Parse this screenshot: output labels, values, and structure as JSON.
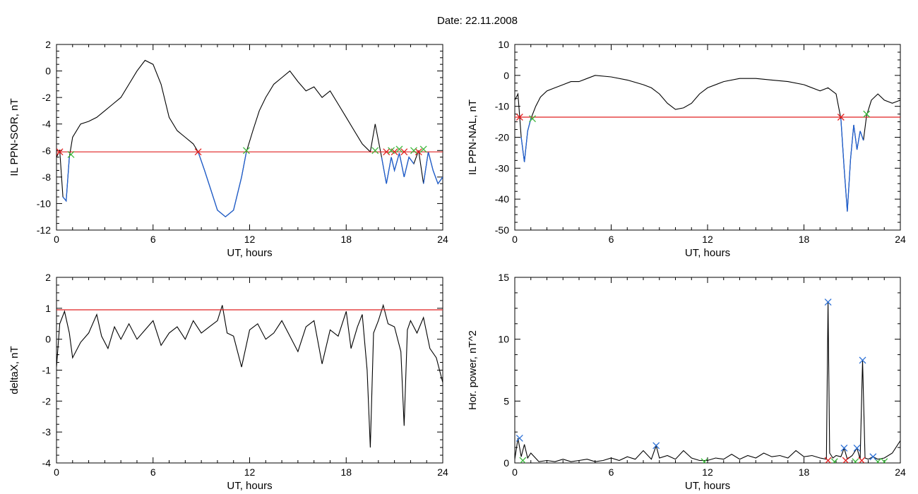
{
  "page": {
    "title": "Date:  22.11.2008"
  },
  "colors": {
    "trace": "#000000",
    "highlight": "#1f5fd0",
    "threshold": "#e02020",
    "marker_red": "#e02020",
    "marker_green": "#3cb83c",
    "marker_blue": "#2a6fd6"
  },
  "chart_data": [
    {
      "id": "sor",
      "type": "line",
      "xlabel": "UT, hours",
      "ylabel": "IL PPN-SOR, nT",
      "xlim": [
        0,
        24
      ],
      "ylim": [
        -12,
        2
      ],
      "xticks": [
        0,
        6,
        12,
        18,
        24
      ],
      "yticks": [
        2,
        0,
        -2,
        -4,
        -6,
        -8,
        -10,
        -12
      ],
      "threshold": -6.1,
      "series": [
        {
          "x": [
            0,
            0.2,
            0.4,
            0.6,
            0.8,
            1.0,
            1.5,
            2.0,
            2.5,
            3.0,
            3.5,
            4.0,
            4.5,
            5.0,
            5.5,
            6.0,
            6.5,
            7.0,
            7.5,
            8.0,
            8.5,
            8.8,
            9.2,
            9.6,
            10.0,
            10.5,
            11.0,
            11.5,
            11.8,
            12.2,
            12.6,
            13.0,
            13.5,
            14.0,
            14.5,
            15.0,
            15.5,
            16.0,
            16.5,
            17.0,
            17.5,
            18.0,
            18.5,
            19.0,
            19.5,
            19.8,
            20.2,
            20.5,
            20.8,
            21.0,
            21.3,
            21.6,
            21.9,
            22.2,
            22.5,
            22.8,
            23.1,
            23.4,
            23.7,
            24.0
          ],
          "y": [
            -6.5,
            -6.0,
            -9.5,
            -9.8,
            -6.5,
            -5.0,
            -4.0,
            -3.8,
            -3.5,
            -3.0,
            -2.5,
            -2.0,
            -1.0,
            0.0,
            0.8,
            0.5,
            -1.0,
            -3.5,
            -4.5,
            -5.0,
            -5.5,
            -6.1,
            -7.5,
            -9.0,
            -10.5,
            -11.0,
            -10.5,
            -8.0,
            -6.1,
            -4.5,
            -3.0,
            -2.0,
            -1.0,
            -0.5,
            0.0,
            -0.8,
            -1.5,
            -1.2,
            -2.0,
            -1.5,
            -2.5,
            -3.5,
            -4.5,
            -5.5,
            -6.1,
            -4.0,
            -6.5,
            -8.5,
            -6.5,
            -7.5,
            -6.2,
            -8.0,
            -6.5,
            -7.0,
            -6.0,
            -8.5,
            -6.1,
            -7.5,
            -8.5,
            -8.0
          ]
        }
      ],
      "red_markers": [
        [
          0.2,
          -6.1
        ],
        [
          8.8,
          -6.1
        ],
        [
          20.5,
          -6.1
        ],
        [
          21.0,
          -6.1
        ],
        [
          21.6,
          -6.1
        ],
        [
          22.5,
          -6.1
        ]
      ],
      "green_markers": [
        [
          0.9,
          -6.3
        ],
        [
          11.8,
          -6.0
        ],
        [
          19.8,
          -6.0
        ],
        [
          20.8,
          -6.0
        ],
        [
          21.3,
          -5.9
        ],
        [
          22.2,
          -6.0
        ],
        [
          22.8,
          -5.9
        ]
      ]
    },
    {
      "id": "nal",
      "type": "line",
      "xlabel": "UT, hours",
      "ylabel": "IL PPN-NAL, nT",
      "xlim": [
        0,
        24
      ],
      "ylim": [
        -50,
        10
      ],
      "xticks": [
        0,
        6,
        12,
        18,
        24
      ],
      "yticks": [
        10,
        0,
        -10,
        -20,
        -30,
        -40,
        -50
      ],
      "threshold": -13.5,
      "series": [
        {
          "x": [
            0,
            0.2,
            0.4,
            0.6,
            0.8,
            1.0,
            1.3,
            1.6,
            2.0,
            2.5,
            3.0,
            3.5,
            4.0,
            4.5,
            5.0,
            6.0,
            7.0,
            8.0,
            8.5,
            9.0,
            9.5,
            10.0,
            10.5,
            11.0,
            11.5,
            12.0,
            13.0,
            14.0,
            15.0,
            16.0,
            17.0,
            18.0,
            19.0,
            19.5,
            20.0,
            20.3,
            20.5,
            20.7,
            20.9,
            21.1,
            21.3,
            21.5,
            21.7,
            21.9,
            22.2,
            22.6,
            23.0,
            23.5,
            24.0
          ],
          "y": [
            -8,
            -6,
            -20,
            -28,
            -18,
            -14,
            -10,
            -7,
            -5,
            -4,
            -3,
            -2,
            -2,
            -1,
            0,
            -0.5,
            -1.5,
            -3,
            -4,
            -6,
            -9,
            -11,
            -10.5,
            -9,
            -6,
            -4,
            -2,
            -1,
            -1,
            -1.5,
            -2,
            -3,
            -5,
            -4,
            -6,
            -14,
            -30,
            -44,
            -27,
            -16,
            -24,
            -18,
            -21,
            -13,
            -8,
            -6,
            -8,
            -9,
            -8
          ]
        }
      ],
      "red_markers": [
        [
          0.3,
          -13.5
        ],
        [
          20.3,
          -13.5
        ]
      ],
      "green_markers": [
        [
          1.1,
          -14.0
        ],
        [
          21.9,
          -12.5
        ]
      ]
    },
    {
      "id": "deltax",
      "type": "line",
      "xlabel": "UT, hours",
      "ylabel": "deltaX, nT",
      "xlim": [
        0,
        24
      ],
      "ylim": [
        -4,
        2
      ],
      "xticks": [
        0,
        6,
        12,
        18,
        24
      ],
      "yticks": [
        2,
        1,
        0,
        -1,
        -2,
        -3,
        -4
      ],
      "threshold": 0.95,
      "series": [
        {
          "x": [
            0,
            0.2,
            0.5,
            0.8,
            1.0,
            1.5,
            2.0,
            2.5,
            2.8,
            3.2,
            3.6,
            4.0,
            4.5,
            5.0,
            5.5,
            6.0,
            6.5,
            7.0,
            7.5,
            8.0,
            8.5,
            9.0,
            9.5,
            10.0,
            10.3,
            10.6,
            11.0,
            11.5,
            12.0,
            12.5,
            13.0,
            13.5,
            14.0,
            14.5,
            15.0,
            15.5,
            16.0,
            16.5,
            17.0,
            17.5,
            18.0,
            18.3,
            18.7,
            19.0,
            19.3,
            19.5,
            19.7,
            20.0,
            20.3,
            20.6,
            21.0,
            21.4,
            21.6,
            21.8,
            22.0,
            22.4,
            22.8,
            23.2,
            23.6,
            24.0
          ],
          "y": [
            -0.9,
            0.5,
            0.9,
            0.2,
            -0.6,
            -0.1,
            0.2,
            0.8,
            0.1,
            -0.3,
            0.4,
            0.0,
            0.5,
            0.0,
            0.3,
            0.6,
            -0.2,
            0.2,
            0.4,
            0.0,
            0.6,
            0.2,
            0.4,
            0.6,
            1.1,
            0.2,
            0.1,
            -0.9,
            0.3,
            0.5,
            0.0,
            0.2,
            0.6,
            0.1,
            -0.4,
            0.4,
            0.6,
            -0.8,
            0.3,
            0.1,
            0.9,
            -0.3,
            0.4,
            0.8,
            -1.0,
            -3.5,
            0.2,
            0.6,
            1.1,
            0.5,
            0.4,
            -0.4,
            -2.8,
            0.3,
            0.6,
            0.2,
            0.7,
            -0.3,
            -0.6,
            -1.4
          ]
        }
      ]
    },
    {
      "id": "power",
      "type": "line",
      "xlabel": "UT, hours",
      "ylabel": "Hor. power, nT^2",
      "xlim": [
        0,
        24
      ],
      "ylim": [
        0,
        15
      ],
      "xticks": [
        0,
        6,
        12,
        18,
        24
      ],
      "yticks": [
        15,
        10,
        5,
        0
      ],
      "series": [
        {
          "x": [
            0,
            0.2,
            0.4,
            0.6,
            0.8,
            1.0,
            1.5,
            2.0,
            2.5,
            3.0,
            3.5,
            4.0,
            4.5,
            5.0,
            5.5,
            6.0,
            6.5,
            7.0,
            7.5,
            8.0,
            8.5,
            8.8,
            9.0,
            9.5,
            10.0,
            10.5,
            11.0,
            11.5,
            12.0,
            12.5,
            13.0,
            13.5,
            14.0,
            14.5,
            15.0,
            15.5,
            16.0,
            16.5,
            17.0,
            17.5,
            18.0,
            18.5,
            19.0,
            19.4,
            19.5,
            19.6,
            19.8,
            20.0,
            20.3,
            20.5,
            20.7,
            21.0,
            21.3,
            21.5,
            21.65,
            21.8,
            22.0,
            22.3,
            22.6,
            23.0,
            23.5,
            24.0
          ],
          "y": [
            0.3,
            2.0,
            0.5,
            1.5,
            0.4,
            0.8,
            0.1,
            0.2,
            0.1,
            0.3,
            0.1,
            0.2,
            0.3,
            0.1,
            0.2,
            0.4,
            0.2,
            0.5,
            0.3,
            1.0,
            0.3,
            1.4,
            0.4,
            0.6,
            0.3,
            1.0,
            0.4,
            0.2,
            0.2,
            0.4,
            0.3,
            0.7,
            0.3,
            0.6,
            0.4,
            0.8,
            0.5,
            0.6,
            0.4,
            1.0,
            0.5,
            0.6,
            0.4,
            0.3,
            13.0,
            0.8,
            0.4,
            0.6,
            0.5,
            1.2,
            0.3,
            0.6,
            1.2,
            0.3,
            8.3,
            0.4,
            0.3,
            0.5,
            0.3,
            0.4,
            0.8,
            1.8
          ]
        }
      ],
      "blue_markers": [
        [
          0.3,
          2.0
        ],
        [
          8.8,
          1.4
        ],
        [
          19.5,
          13.0
        ],
        [
          20.5,
          1.2
        ],
        [
          21.3,
          1.2
        ],
        [
          21.65,
          8.3
        ],
        [
          22.3,
          0.5
        ]
      ],
      "red_markers": [
        [
          19.5,
          0.2
        ],
        [
          20.6,
          0.2
        ],
        [
          21.6,
          0.2
        ]
      ],
      "green_markers": [
        [
          0.5,
          0.2
        ],
        [
          11.8,
          0.1
        ],
        [
          19.9,
          0.1
        ],
        [
          21.2,
          0.1
        ],
        [
          22.6,
          0.1
        ],
        [
          23.0,
          0.1
        ]
      ]
    }
  ]
}
